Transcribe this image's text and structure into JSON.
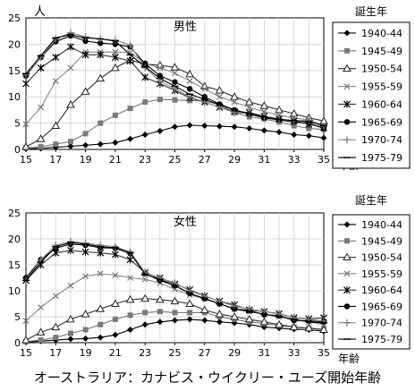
{
  "caption": "オーストラリア：カナビス・ウイクリー・ユーズ開始年齢",
  "chart_data": [
    {
      "type": "line",
      "title": "男性",
      "ylabel": "人",
      "xlabel": "年齢",
      "legend_title": "誕生年",
      "legend_position": "right",
      "grid": true,
      "ylim": [
        0,
        25
      ],
      "xlim": [
        15,
        35
      ],
      "yticks": [
        "0",
        "5",
        "10",
        "15",
        "20",
        "25"
      ],
      "xticks": [
        "15",
        "17",
        "19",
        "21",
        "23",
        "25",
        "27",
        "29",
        "31",
        "33",
        "35"
      ],
      "x": [
        15,
        16,
        17,
        18,
        19,
        20,
        21,
        22,
        23,
        24,
        25,
        26,
        27,
        28,
        29,
        30,
        31,
        32,
        33,
        34,
        35
      ],
      "series": [
        {
          "name": "1940-44",
          "marker": "diamond",
          "values": [
            0.1,
            0.2,
            0.4,
            0.6,
            0.8,
            1.0,
            1.3,
            2.0,
            2.8,
            3.5,
            4.3,
            4.6,
            4.5,
            4.4,
            4.3,
            4.0,
            3.6,
            3.3,
            2.8,
            2.6,
            2.2
          ]
        },
        {
          "name": "1945-49",
          "marker": "square",
          "values": [
            0.3,
            0.5,
            1.0,
            1.5,
            3.0,
            5.0,
            6.5,
            7.8,
            9.0,
            9.5,
            9.4,
            9.3,
            9.2,
            8.5,
            7.0,
            6.2,
            5.8,
            5.2,
            4.5,
            4.0,
            3.8
          ]
        },
        {
          "name": "1950-54",
          "marker": "triangle",
          "values": [
            0.5,
            2.0,
            4.5,
            8.5,
            11.0,
            13.5,
            15.5,
            17.0,
            16.2,
            16.0,
            15.6,
            14.3,
            12.0,
            11.2,
            10.0,
            9.0,
            8.3,
            7.5,
            6.8,
            6.0,
            5.4
          ]
        },
        {
          "name": "1955-59",
          "marker": "cross",
          "values": [
            4.8,
            8.0,
            13.0,
            15.5,
            18.5,
            18.5,
            18.5,
            18.4,
            16.3,
            15.5,
            14.5,
            13.0,
            11.5,
            10.0,
            9.0,
            8.0,
            7.2,
            6.5,
            6.0,
            5.6,
            4.6
          ]
        },
        {
          "name": "1960-64",
          "marker": "star",
          "values": [
            12.5,
            15.5,
            17.5,
            19.5,
            18.0,
            18.0,
            17.5,
            16.8,
            13.7,
            12.5,
            11.2,
            9.8,
            9.0,
            8.0,
            7.2,
            7.0,
            6.3,
            5.8,
            5.4,
            4.8,
            4.2
          ]
        },
        {
          "name": "1965-69",
          "marker": "circle",
          "values": [
            14.0,
            17.5,
            20.5,
            21.6,
            20.6,
            20.2,
            20.0,
            19.5,
            16.3,
            14.0,
            12.8,
            11.5,
            10.0,
            8.6,
            7.5,
            6.7,
            6.0,
            5.6,
            5.2,
            5.0,
            4.0
          ]
        },
        {
          "name": "1970-74",
          "marker": "plus",
          "values": [
            14.2,
            17.5,
            21.0,
            22.2,
            21.4,
            21.0,
            20.8,
            19.8,
            15.5,
            13.0,
            11.5,
            10.0,
            9.0,
            8.0,
            7.0,
            6.8,
            6.2,
            5.7,
            5.4,
            5.5,
            4.4
          ]
        },
        {
          "name": "1975-79",
          "marker": "dash",
          "values": [
            14.4,
            17.8,
            21.2,
            21.8,
            21.2,
            21.0,
            20.6,
            18.0,
            15.7,
            13.5,
            12.0,
            10.5,
            9.5,
            8.5,
            7.5,
            6.8,
            6.2,
            5.7,
            5.5,
            5.3,
            4.5
          ]
        }
      ]
    },
    {
      "type": "line",
      "title": "女性",
      "ylabel": "",
      "xlabel": "年齢",
      "legend_title": "誕生年",
      "legend_position": "right",
      "grid": true,
      "ylim": [
        0,
        25
      ],
      "xlim": [
        15,
        35
      ],
      "yticks": [
        "0",
        "5",
        "10",
        "15",
        "20",
        "25"
      ],
      "xticks": [
        "15",
        "17",
        "19",
        "21",
        "23",
        "25",
        "27",
        "29",
        "31",
        "33",
        "35"
      ],
      "x": [
        15,
        16,
        17,
        18,
        19,
        20,
        21,
        22,
        23,
        24,
        25,
        26,
        27,
        28,
        29,
        30,
        31,
        32,
        33,
        34,
        35
      ],
      "series": [
        {
          "name": "1940-44",
          "marker": "diamond",
          "values": [
            0.1,
            0.3,
            0.5,
            0.7,
            0.8,
            1.0,
            1.5,
            2.5,
            3.5,
            4.0,
            4.3,
            4.5,
            4.3,
            4.0,
            3.8,
            3.5,
            3.0,
            2.8,
            2.6,
            2.5,
            2.2
          ]
        },
        {
          "name": "1945-49",
          "marker": "square",
          "values": [
            0.2,
            0.5,
            1.0,
            1.8,
            2.5,
            3.5,
            4.5,
            5.3,
            5.8,
            6.0,
            5.8,
            5.8,
            5.8,
            5.0,
            4.5,
            4.0,
            3.7,
            3.3,
            3.0,
            2.8,
            2.6
          ]
        },
        {
          "name": "1950-54",
          "marker": "triangle",
          "values": [
            0.5,
            2.0,
            3.0,
            4.5,
            5.5,
            6.5,
            7.5,
            8.3,
            8.5,
            8.3,
            8.0,
            7.5,
            6.3,
            5.5,
            5.0,
            4.5,
            4.0,
            3.5,
            3.0,
            2.8,
            2.5
          ]
        },
        {
          "name": "1955-59",
          "marker": "cross",
          "values": [
            4.2,
            6.8,
            9.0,
            11.0,
            12.8,
            13.3,
            13.0,
            12.5,
            12.2,
            11.5,
            10.3,
            9.2,
            8.5,
            7.5,
            6.5,
            6.0,
            5.5,
            5.0,
            4.5,
            4.0,
            3.5
          ]
        },
        {
          "name": "1960-64",
          "marker": "star",
          "values": [
            12.0,
            15.0,
            17.3,
            17.8,
            17.5,
            17.3,
            17.0,
            16.0,
            13.5,
            12.5,
            11.3,
            10.2,
            9.0,
            8.0,
            7.3,
            6.3,
            6.0,
            5.6,
            4.8,
            4.6,
            4.8
          ]
        },
        {
          "name": "1965-69",
          "marker": "circle",
          "values": [
            12.5,
            16.0,
            18.2,
            19.0,
            18.8,
            18.3,
            18.2,
            17.2,
            13.3,
            12.0,
            11.0,
            9.5,
            8.5,
            7.5,
            6.5,
            6.2,
            5.4,
            5.2,
            4.3,
            4.2,
            4.0
          ]
        },
        {
          "name": "1970-74",
          "marker": "plus",
          "values": [
            12.0,
            16.0,
            18.8,
            19.5,
            19.2,
            18.8,
            18.5,
            17.5,
            13.5,
            12.5,
            11.5,
            10.0,
            9.0,
            8.0,
            7.0,
            6.5,
            6.0,
            5.5,
            4.8,
            4.5,
            4.2
          ]
        },
        {
          "name": "1975-79",
          "marker": "dash",
          "values": [
            12.0,
            15.5,
            18.5,
            19.3,
            19.0,
            18.5,
            18.3,
            17.3,
            13.2,
            12.2,
            11.0,
            9.5,
            8.5,
            7.5,
            6.5,
            6.0,
            5.5,
            5.0,
            4.5,
            4.0,
            3.8
          ]
        }
      ]
    }
  ]
}
